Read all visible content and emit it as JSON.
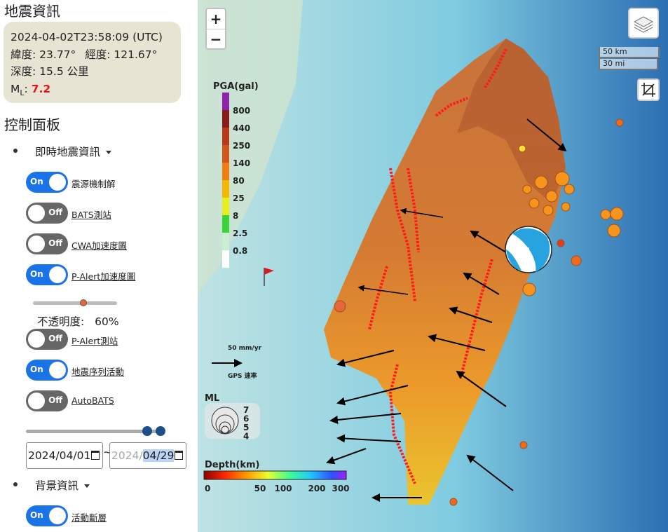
{
  "sidebar": {
    "eq_title": "地震資訊",
    "eq_card": {
      "time": "2024-04-02T23:58:09 (UTC)",
      "lat_label": "緯度:",
      "lat": "23.77°",
      "lon_label": "經度:",
      "lon": "121.67°",
      "depth_label": "深度:",
      "depth": "15.5",
      "depth_unit": "公里",
      "ml_main": "M",
      "ml_sub": "L",
      "ml_colon": ":",
      "ml_value": "7.2"
    },
    "control_title": "控制面板",
    "menus": {
      "realtime": "即時地震資訊",
      "background": "背景資訊"
    },
    "toggles": [
      {
        "label": "震源機制解",
        "state": "On",
        "underline": false
      },
      {
        "label": "BATS測站",
        "state": "Off",
        "underline": true
      },
      {
        "label": "CWA加速度圖",
        "state": "Off",
        "underline": true
      },
      {
        "label": "P-Alert加速度圖",
        "state": "On",
        "underline": true
      },
      {
        "label": "P-Alert測站",
        "state": "Off",
        "underline": true
      },
      {
        "label": "地震序列活動",
        "state": "On",
        "underline": true
      },
      {
        "label": "AutoBATS",
        "state": "Off",
        "underline": true
      },
      {
        "label": "活動斷層",
        "state": "On",
        "underline": true
      }
    ],
    "opacity": {
      "label": "不透明度:",
      "value": "60%",
      "level": 0.6
    },
    "date_range": {
      "start": "2024/04/01",
      "separator": "~",
      "end_year": "2024/",
      "end_rest": "04/29",
      "start_pos": 0.9,
      "end_pos": 1.0
    }
  },
  "map": {
    "zoom_in": "+",
    "zoom_out": "−",
    "scale_km": "50 km",
    "scale_mi": "30 mi",
    "pga_legend": {
      "title": "PGA(gal)",
      "levels": [
        "800",
        "440",
        "250",
        "140",
        "80",
        "25",
        "8",
        "2.5",
        "0.8"
      ],
      "colors": [
        "#8e24aa",
        "#8b1a1a",
        "#b83a1a",
        "#d0561c",
        "#f07d12",
        "#f5b800",
        "#e6ef1d",
        "#3ad33a",
        "#c8f0d0",
        "#ffffff"
      ]
    },
    "gps_legend": {
      "value_label": "50 mm/yr",
      "caption": "GPS 速率"
    },
    "ml_legend": {
      "title": "ML",
      "values": [
        "7",
        "6",
        "5",
        "4"
      ]
    },
    "depth_legend": {
      "title": "Depth(km)",
      "ticks": [
        "0",
        "50",
        "100",
        "200",
        "300"
      ]
    },
    "colors": {
      "toggle_on": "#1a73e8",
      "toggle_off": "#666666",
      "fault_line": "#ff1a1a",
      "quake_fill": "#f7941d",
      "ml_value": "#e3171b"
    }
  }
}
